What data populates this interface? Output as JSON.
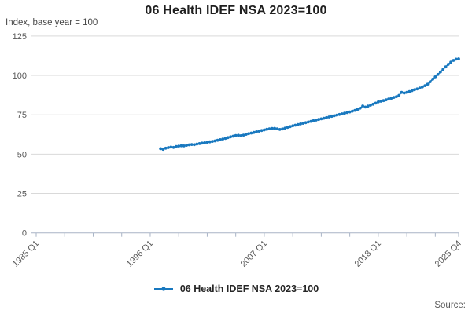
{
  "header": {
    "title": "06 Health IDEF NSA 2023=100",
    "subtitle": "Index, base year = 100"
  },
  "legend": {
    "label": "06 Health IDEF NSA 2023=100",
    "marker_color": "#1878bf"
  },
  "footer": {
    "source_label": "Source:"
  },
  "colors": {
    "line": "#1878bf",
    "gridline": "#d9d9d9",
    "axis": "#a9b4c6",
    "tick_text": "#595959",
    "title_text": "#1f1f1f",
    "background": "#ffffff"
  },
  "chart_data": {
    "type": "line",
    "title": "06 Health IDEF NSA 2023=100",
    "subtitle": "Index, base year = 100",
    "grid": "horizontal",
    "legend_position": "bottom-center",
    "xaxis": {
      "start": "1985 Q1",
      "end": "2025 Q4",
      "tick_labels": [
        "1985 Q1",
        "1996 Q1",
        "2007 Q1",
        "2018 Q1",
        "2025 Q4"
      ],
      "minor_tick_interval_quarters": 11,
      "label_rotation_deg": -45
    },
    "yaxis": {
      "ticks": [
        0,
        25,
        50,
        75,
        100,
        125
      ],
      "range": [
        0,
        131
      ]
    },
    "series": [
      {
        "name": "06 Health IDEF NSA 2023=100",
        "color": "#1878bf",
        "marker": "circle",
        "frequency": "quarterly",
        "x_start": "1997 Q1",
        "x_end": "2025 Q4",
        "values": [
          53.5,
          53.1,
          53.8,
          54.2,
          54.5,
          54.3,
          54.8,
          55.1,
          55.3,
          55.2,
          55.6,
          55.9,
          56.1,
          56.0,
          56.4,
          56.7,
          57.0,
          57.2,
          57.5,
          57.8,
          58.1,
          58.4,
          58.8,
          59.2,
          59.6,
          60.0,
          60.5,
          61.0,
          61.4,
          61.8,
          62.0,
          61.7,
          62.1,
          62.6,
          63.0,
          63.4,
          63.8,
          64.2,
          64.6,
          65.0,
          65.4,
          65.8,
          66.1,
          66.3,
          66.4,
          66.1,
          65.7,
          66.0,
          66.5,
          67.0,
          67.5,
          68.0,
          68.4,
          68.8,
          69.2,
          69.6,
          70.0,
          70.4,
          70.8,
          71.2,
          71.6,
          72.0,
          72.4,
          72.8,
          73.2,
          73.6,
          74.0,
          74.4,
          74.8,
          75.2,
          75.6,
          76.0,
          76.4,
          76.8,
          77.3,
          77.8,
          78.4,
          79.2,
          80.6,
          79.9,
          80.5,
          81.1,
          81.7,
          82.4,
          83.2,
          83.6,
          84.0,
          84.5,
          85.0,
          85.5,
          86.0,
          86.5,
          87.3,
          89.2,
          88.8,
          89.2,
          89.7,
          90.3,
          90.9,
          91.4,
          92.0,
          92.7,
          93.5,
          94.4,
          96.0,
          97.6,
          99.1,
          100.6,
          102.2,
          103.8,
          105.4,
          107.0,
          108.4,
          109.5,
          110.3,
          110.5
        ]
      }
    ]
  }
}
